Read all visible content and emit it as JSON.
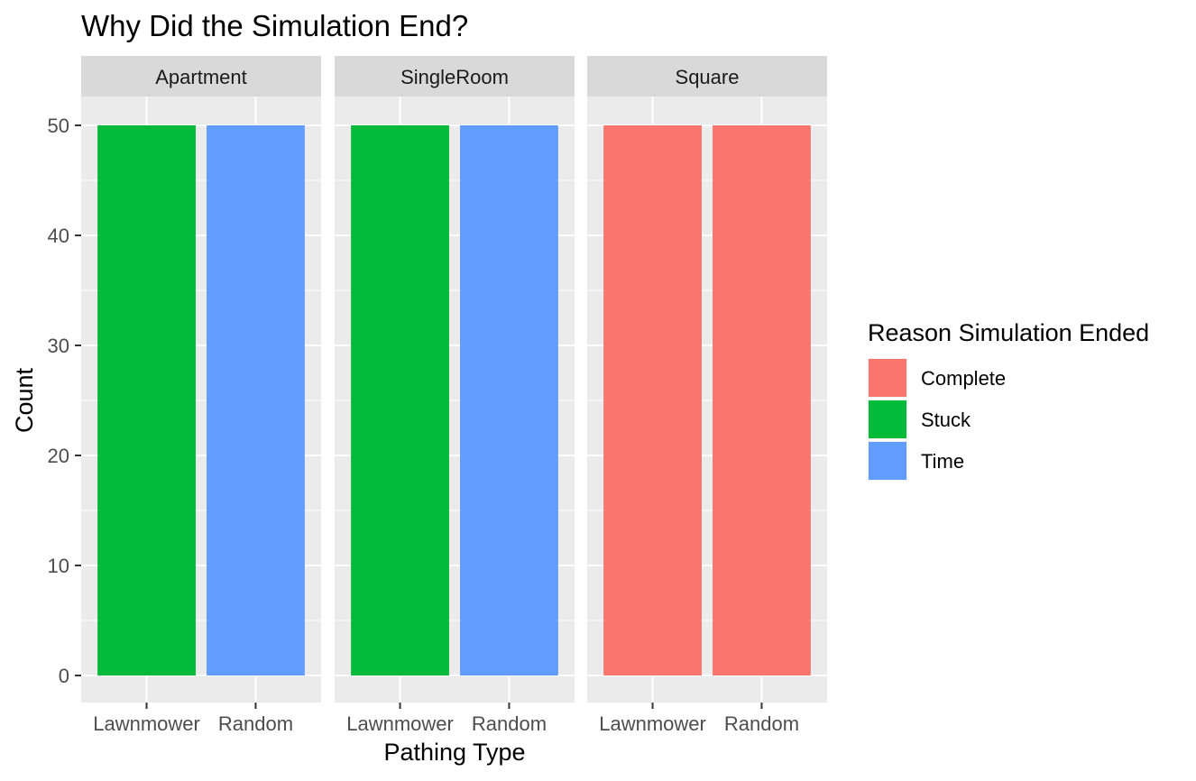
{
  "chart_data": {
    "type": "bar",
    "title": "Why Did the Simulation End?",
    "xlabel": "Pathing Type",
    "ylabel": "Count",
    "ylim": [
      0,
      53
    ],
    "yticks": [
      0,
      10,
      20,
      30,
      40,
      50
    ],
    "categories": [
      "Lawnmower",
      "Random"
    ],
    "grid": true,
    "legend": {
      "title": "Reason Simulation Ended",
      "placement": "right",
      "entries": [
        {
          "label": "Complete",
          "color": "#F8766D"
        },
        {
          "label": "Stuck",
          "color": "#00BA38"
        },
        {
          "label": "Time",
          "color": "#619CFF"
        }
      ]
    },
    "facets": [
      {
        "label": "Apartment",
        "bars": [
          {
            "category": "Lawnmower",
            "value": 50,
            "fill": "Stuck"
          },
          {
            "category": "Random",
            "value": 50,
            "fill": "Time"
          }
        ]
      },
      {
        "label": "SingleRoom",
        "bars": [
          {
            "category": "Lawnmower",
            "value": 50,
            "fill": "Stuck"
          },
          {
            "category": "Random",
            "value": 50,
            "fill": "Time"
          }
        ]
      },
      {
        "label": "Square",
        "bars": [
          {
            "category": "Lawnmower",
            "value": 50,
            "fill": "Complete"
          },
          {
            "category": "Random",
            "value": 50,
            "fill": "Complete"
          }
        ]
      }
    ]
  }
}
